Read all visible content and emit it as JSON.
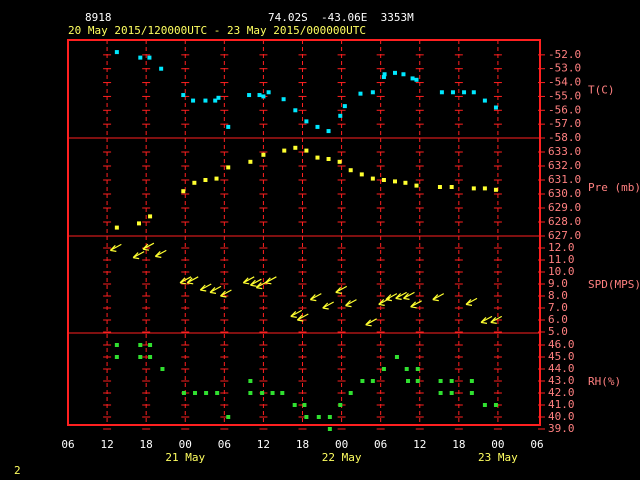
{
  "header": {
    "station": "8918",
    "location": "74.02S  -43.06E  3353M",
    "period": "20 May 2015/120000UTC - 23 May 2015/000000UTC"
  },
  "page_number": "2",
  "chart_data": [
    {
      "type": "scatter",
      "ylabel": "T(C)",
      "color": "#00e8ff",
      "x": [
        7.5,
        11.1,
        12.5,
        14.3,
        17.7,
        19.2,
        21.1,
        22.6,
        23.1,
        24.6,
        27.8,
        29.4,
        30,
        30.8,
        33.1,
        34.9,
        36.6,
        38.3,
        40,
        41.8,
        42.5,
        44.9,
        46.8,
        48.5,
        48.6,
        50.2,
        51.5,
        52.9,
        53.5,
        57.4,
        59.1,
        60.8,
        62.3,
        64,
        65.7
      ],
      "values": [
        -51.8,
        -52.2,
        -52.2,
        -53.0,
        -54.9,
        -55.3,
        -55.3,
        -55.3,
        -55.1,
        -57.2,
        -54.9,
        -54.9,
        -55.0,
        -54.7,
        -55.2,
        -56.0,
        -56.8,
        -57.2,
        -57.5,
        -56.4,
        -55.7,
        -54.8,
        -54.7,
        -53.6,
        -53.4,
        -53.3,
        -53.4,
        -53.7,
        -53.8,
        -54.7,
        -54.7,
        -54.7,
        -54.7,
        -55.3,
        -55.8
      ],
      "ylim": [
        -58,
        -51
      ],
      "yticks": [
        {
          "value": -52,
          "label": "-52.0"
        },
        {
          "value": -53,
          "label": "-53.0"
        },
        {
          "value": -54,
          "label": "-54.0"
        },
        {
          "value": -55,
          "label": "-55.0"
        },
        {
          "value": -56,
          "label": "-56.0"
        },
        {
          "value": -57,
          "label": "-57.0"
        },
        {
          "value": -58,
          "label": "-58.0"
        }
      ]
    },
    {
      "type": "scatter",
      "ylabel": "Pre (mb)",
      "color": "#ffff30",
      "x": [
        7.5,
        10.9,
        12.6,
        17.7,
        19.4,
        21.1,
        22.8,
        24.6,
        28,
        30,
        33.2,
        34.9,
        36.6,
        38.3,
        40,
        41.7,
        43.4,
        45.1,
        46.8,
        48.5,
        50.2,
        51.8,
        53.5,
        57.1,
        58.9,
        62.3,
        64,
        65.7
      ],
      "values": [
        627.6,
        627.9,
        628.4,
        630.2,
        630.8,
        631.0,
        631.1,
        631.9,
        632.3,
        632.8,
        633.1,
        633.3,
        633.1,
        632.6,
        632.5,
        632.3,
        631.7,
        631.4,
        631.1,
        631.0,
        630.9,
        630.8,
        630.6,
        630.5,
        630.5,
        630.4,
        630.4,
        630.3
      ],
      "ylim": [
        627,
        634
      ],
      "yticks": [
        {
          "value": 633,
          "label": "633.0"
        },
        {
          "value": 632,
          "label": "632.0"
        },
        {
          "value": 631,
          "label": "631.0"
        },
        {
          "value": 630,
          "label": "630.0"
        },
        {
          "value": 629,
          "label": "629.0"
        },
        {
          "value": 628,
          "label": "628.0"
        },
        {
          "value": 627,
          "label": "627.0"
        }
      ]
    },
    {
      "type": "arrow",
      "ylabel": "SPD(MPS)",
      "color": "#ffff30",
      "x": [
        6.5,
        10,
        11.5,
        13.4,
        17.2,
        18.3,
        20.3,
        21.8,
        23.4,
        26.9,
        28,
        28.9,
        30.3,
        34.2,
        35.2,
        37.2,
        39.1,
        41.1,
        42.6,
        45.7,
        47.7,
        48.8,
        50.3,
        51.5,
        52.6,
        56,
        61.1,
        63.4,
        64.9
      ],
      "values": [
        11.8,
        11.2,
        11.9,
        11.3,
        9.1,
        9.1,
        8.5,
        8.3,
        8.0,
        9.1,
        8.9,
        8.7,
        9.1,
        6.3,
        6.0,
        7.7,
        7.0,
        8.3,
        7.2,
        5.6,
        7.3,
        7.7,
        7.8,
        7.8,
        7.1,
        7.7,
        7.3,
        5.8,
        5.8
      ],
      "ylim": [
        5,
        13
      ],
      "yticks": [
        {
          "value": 12,
          "label": "12.0"
        },
        {
          "value": 11,
          "label": "11.0"
        },
        {
          "value": 10,
          "label": "10.0"
        },
        {
          "value": 9,
          "label": "9.0"
        },
        {
          "value": 8,
          "label": "8.0"
        },
        {
          "value": 7,
          "label": "7.0"
        },
        {
          "value": 6,
          "label": "6.0"
        },
        {
          "value": 5,
          "label": "5.0"
        }
      ]
    },
    {
      "type": "scatter",
      "ylabel": "RH(%)",
      "color": "#30e030",
      "x": [
        7.5,
        7.5,
        11.1,
        11.1,
        12.6,
        12.6,
        14.5,
        17.8,
        19.5,
        21.2,
        22.9,
        24.6,
        28,
        28,
        29.8,
        31.4,
        32.9,
        34.8,
        36.3,
        36.6,
        38.5,
        40.2,
        40.2,
        41.8,
        43.4,
        45.2,
        46.8,
        48.5,
        50.5,
        52,
        52.2,
        53.7,
        53.7,
        57.2,
        57.2,
        58.9,
        58.9,
        62,
        62,
        64,
        65.7
      ],
      "values": [
        46,
        45,
        46,
        45,
        46,
        45,
        44,
        42,
        42,
        42,
        42,
        40,
        43,
        42,
        42,
        42,
        42,
        41,
        41,
        40,
        40,
        40,
        39,
        41,
        42,
        43,
        43,
        44,
        45,
        44,
        43,
        44,
        43,
        43,
        42,
        43,
        42,
        43,
        42,
        41,
        41
      ],
      "ylim": [
        39,
        47
      ],
      "yticks": [
        {
          "value": 46,
          "label": "46.0"
        },
        {
          "value": 45,
          "label": "45.0"
        },
        {
          "value": 44,
          "label": "44.0"
        },
        {
          "value": 43,
          "label": "43.0"
        },
        {
          "value": 42,
          "label": "42.0"
        },
        {
          "value": 41,
          "label": "41.0"
        },
        {
          "value": 40,
          "label": "40.0"
        },
        {
          "value": 39,
          "label": "39.0"
        }
      ],
      "xlim": [
        0,
        72
      ],
      "xticks": [
        {
          "value": 0,
          "label": "06"
        },
        {
          "value": 6,
          "label": "12"
        },
        {
          "value": 12,
          "label": "18"
        },
        {
          "value": 18,
          "label": "00"
        },
        {
          "value": 24,
          "label": "06"
        },
        {
          "value": 30,
          "label": "12"
        },
        {
          "value": 36,
          "label": "18"
        },
        {
          "value": 42,
          "label": "00"
        },
        {
          "value": 48,
          "label": "06"
        },
        {
          "value": 54,
          "label": "12"
        },
        {
          "value": 60,
          "label": "18"
        },
        {
          "value": 66,
          "label": "00"
        },
        {
          "value": 72,
          "label": "06"
        }
      ],
      "date_ticks": [
        {
          "value": 18,
          "label": "21 May"
        },
        {
          "value": 42,
          "label": "22 May"
        },
        {
          "value": 66,
          "label": "23 May"
        }
      ]
    }
  ]
}
